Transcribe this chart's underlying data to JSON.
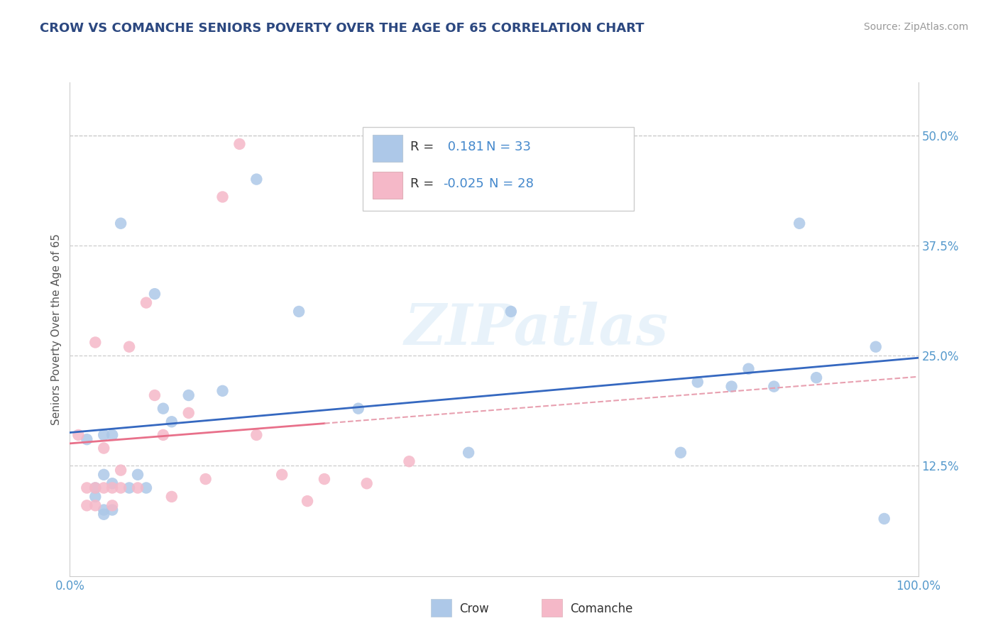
{
  "title": "CROW VS COMANCHE SENIORS POVERTY OVER THE AGE OF 65 CORRELATION CHART",
  "source": "Source: ZipAtlas.com",
  "ylabel": "Seniors Poverty Over the Age of 65",
  "xlim": [
    0.0,
    1.0
  ],
  "ylim": [
    0.0,
    0.56
  ],
  "yticks": [
    0.125,
    0.25,
    0.375,
    0.5
  ],
  "ytick_labels": [
    "12.5%",
    "25.0%",
    "37.5%",
    "50.0%"
  ],
  "xticks": [
    0.0,
    1.0
  ],
  "xtick_labels": [
    "0.0%",
    "100.0%"
  ],
  "crow_R": 0.181,
  "crow_N": 33,
  "comanche_R": -0.025,
  "comanche_N": 28,
  "crow_color": "#adc8e8",
  "comanche_color": "#f5b8c8",
  "crow_line_color": "#3568c0",
  "comanche_line_solid_color": "#e8708a",
  "comanche_line_dash_color": "#e8a0b0",
  "background_color": "#ffffff",
  "watermark_text": "ZIPatlas",
  "title_color": "#2c4880",
  "tick_color": "#5599cc",
  "ylabel_color": "#555555",
  "source_color": "#999999",
  "grid_color": "#cccccc",
  "legend_text_color": "#333333",
  "legend_value_color": "#4488cc",
  "crow_x": [
    0.02,
    0.03,
    0.03,
    0.04,
    0.04,
    0.04,
    0.04,
    0.05,
    0.05,
    0.05,
    0.06,
    0.07,
    0.08,
    0.09,
    0.1,
    0.11,
    0.12,
    0.14,
    0.18,
    0.22,
    0.27,
    0.34,
    0.47,
    0.52,
    0.72,
    0.74,
    0.78,
    0.8,
    0.83,
    0.86,
    0.88,
    0.95,
    0.96
  ],
  "crow_y": [
    0.155,
    0.09,
    0.1,
    0.07,
    0.075,
    0.115,
    0.16,
    0.075,
    0.105,
    0.16,
    0.4,
    0.1,
    0.115,
    0.1,
    0.32,
    0.19,
    0.175,
    0.205,
    0.21,
    0.45,
    0.3,
    0.19,
    0.14,
    0.3,
    0.14,
    0.22,
    0.215,
    0.235,
    0.215,
    0.4,
    0.225,
    0.26,
    0.065
  ],
  "comanche_x": [
    0.01,
    0.02,
    0.02,
    0.03,
    0.03,
    0.03,
    0.04,
    0.04,
    0.05,
    0.05,
    0.06,
    0.06,
    0.07,
    0.08,
    0.09,
    0.1,
    0.11,
    0.12,
    0.14,
    0.16,
    0.18,
    0.2,
    0.22,
    0.25,
    0.28,
    0.3,
    0.35,
    0.4
  ],
  "comanche_y": [
    0.16,
    0.08,
    0.1,
    0.08,
    0.1,
    0.265,
    0.1,
    0.145,
    0.08,
    0.1,
    0.1,
    0.12,
    0.26,
    0.1,
    0.31,
    0.205,
    0.16,
    0.09,
    0.185,
    0.11,
    0.43,
    0.49,
    0.16,
    0.115,
    0.085,
    0.11,
    0.105,
    0.13
  ]
}
